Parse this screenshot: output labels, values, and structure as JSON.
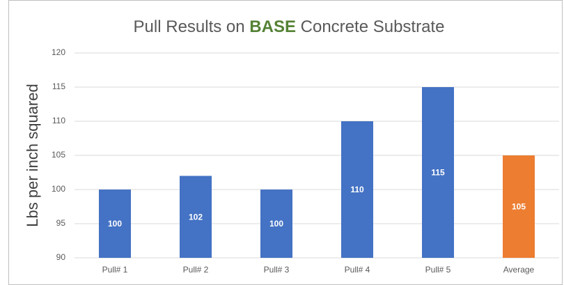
{
  "chart_data": {
    "type": "bar",
    "title": {
      "before": "Pull Results on",
      "highlight": "BASE",
      "after": "Concrete Substrate"
    },
    "highlight_color": "#548235",
    "y_label": "Lbs per inch squared",
    "categories": [
      "Pull# 1",
      "Pull# 2",
      "Pull# 3",
      "Pull# 4",
      "Pull# 5",
      "Average"
    ],
    "values": [
      100,
      102,
      100,
      110,
      115,
      105
    ],
    "colors": [
      "#4472c4",
      "#4472c4",
      "#4472c4",
      "#4472c4",
      "#4472c4",
      "#ed7d31"
    ],
    "ylim": [
      90,
      120
    ],
    "yticks": [
      90,
      95,
      100,
      105,
      110,
      115,
      120
    ],
    "grid": true
  }
}
